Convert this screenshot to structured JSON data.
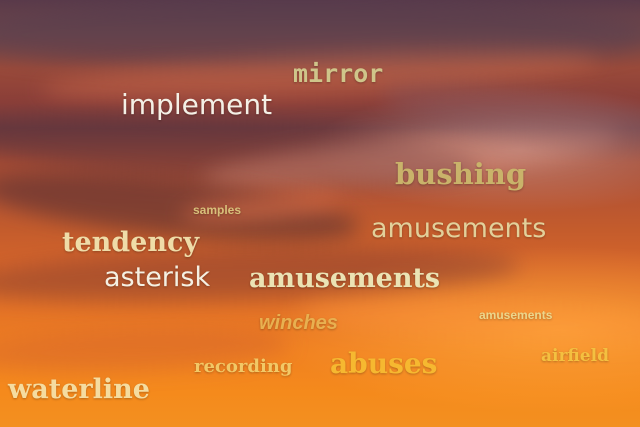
{
  "image": {
    "description_colors": {
      "sky_top": "#5a3a4a",
      "sky_mid": "#b65432",
      "sky_bottom": "#f39020"
    }
  },
  "words": {
    "mirror": "mirror",
    "implement": "implement",
    "bushing": "bushing",
    "samples": "samples",
    "amusements_1": "amusements",
    "tendency": "tendency",
    "asterisk": "asterisk",
    "amusements_2": "amusements",
    "amusements_3": "amusements",
    "winches": "winches",
    "airfield": "airfield",
    "abuses": "abuses",
    "recording": "recording",
    "waterline": "waterline"
  }
}
